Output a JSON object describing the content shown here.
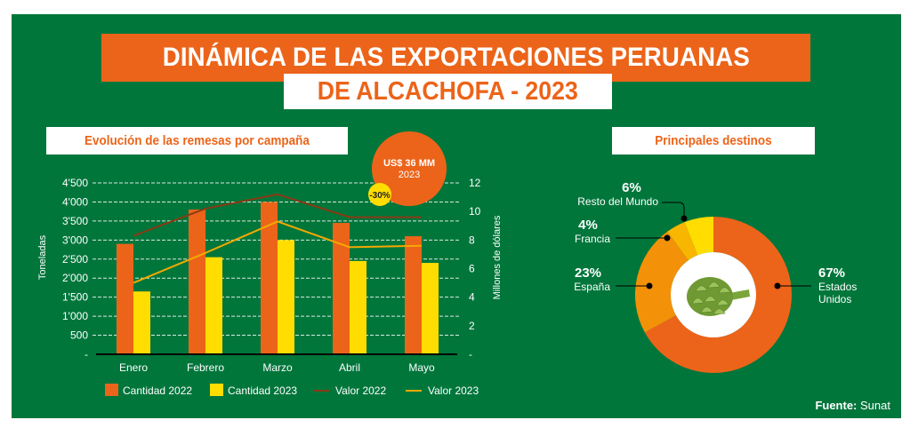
{
  "header": {
    "title_line1": "DINÁMICA DE LAS EXPORTACIONES PERUANAS",
    "title_line2": "DE ALCACHOFA - 2023"
  },
  "colors": {
    "background": "#00763b",
    "orange": "#ec6419",
    "yellow": "#ffdd00",
    "valor2022_line": "#8b3a14",
    "valor2023_line": "#f5a800",
    "spain": "#f39208",
    "france": "#f8b600",
    "rest": "#ffdd00"
  },
  "callout": {
    "amount": "US$ 36 MM",
    "year": "2023",
    "change": "-30%"
  },
  "source": {
    "label": "Fuente:",
    "value": "Sunat"
  },
  "chart_data": [
    {
      "type": "bar",
      "title": "Evolución de las remesas por campaña",
      "categories": [
        "Enero",
        "Febrero",
        "Marzo",
        "Abril",
        "Mayo"
      ],
      "ylabel": "Toneladas",
      "y2label": "Millones de dólares",
      "ylim": [
        0,
        4500
      ],
      "y2lim": [
        0,
        12
      ],
      "yticks": [
        "-",
        "500",
        "1'000",
        "1'500",
        "2'000",
        "2'500",
        "3'000",
        "3'500",
        "4'000",
        "4'500"
      ],
      "yticks_values": [
        0,
        500,
        1000,
        1500,
        2000,
        2500,
        3000,
        3500,
        4000,
        4500
      ],
      "y2ticks": [
        "-",
        "2",
        "4",
        "6",
        "8",
        "10",
        "12"
      ],
      "y2ticks_values": [
        0,
        2,
        4,
        6,
        8,
        10,
        12
      ],
      "grid": true,
      "legend_position": "bottom",
      "series": [
        {
          "name": "Cantidad 2022",
          "kind": "bar",
          "axis": "left",
          "color": "#ec6419",
          "values": [
            2900,
            3800,
            4000,
            3450,
            3100
          ]
        },
        {
          "name": "Cantidad 2023",
          "kind": "bar",
          "axis": "left",
          "color": "#ffdd00",
          "values": [
            1650,
            2550,
            3000,
            2450,
            2400
          ]
        },
        {
          "name": "Valor 2022",
          "kind": "line",
          "axis": "right",
          "color": "#8b3a14",
          "values": [
            8.3,
            10.2,
            11.2,
            9.6,
            9.6
          ]
        },
        {
          "name": "Valor 2023",
          "kind": "line",
          "axis": "right",
          "color": "#f5a800",
          "values": [
            5.0,
            7.1,
            9.3,
            7.5,
            7.6
          ]
        }
      ]
    },
    {
      "type": "pie",
      "title": "Principales destinos",
      "slices": [
        {
          "label_lines": [
            "Estados",
            "Unidos"
          ],
          "pct": "67%",
          "value": 67,
          "color": "#ec6419"
        },
        {
          "label_lines": [
            "España"
          ],
          "pct": "23%",
          "value": 23,
          "color": "#f39208"
        },
        {
          "label_lines": [
            "Francia"
          ],
          "pct": "4%",
          "value": 4,
          "color": "#f8b600"
        },
        {
          "label_lines": [
            "Resto del Mundo"
          ],
          "pct": "6%",
          "value": 6,
          "color": "#ffdd00"
        }
      ]
    }
  ]
}
